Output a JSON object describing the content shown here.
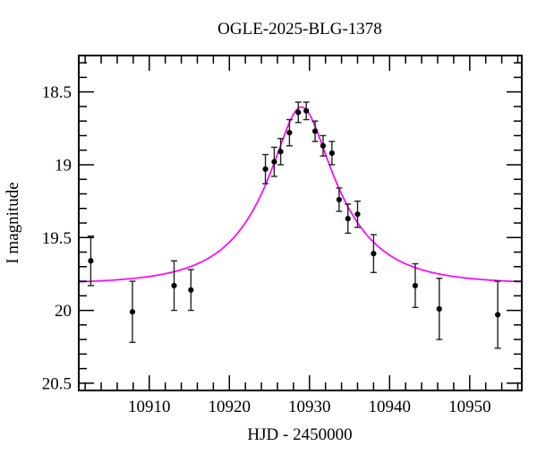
{
  "chart_data": {
    "type": "scatter",
    "title": "OGLE-2025-BLG-1378",
    "xlabel": "HJD - 2450000",
    "ylabel": "I magnitude",
    "xlim": [
      10901.2,
      10956.5
    ],
    "ylim": [
      18.25,
      20.55
    ],
    "y_axis_inverted": true,
    "grid": false,
    "legend": null,
    "x_major_ticks": [
      10910,
      10920,
      10930,
      10940,
      10950
    ],
    "x_major_tick_labels": [
      "10910",
      "10920",
      "10930",
      "10940",
      "10950"
    ],
    "x_minor_step": 2,
    "y_major_ticks": [
      18.5,
      19.0,
      19.5,
      20.0,
      20.5
    ],
    "y_major_tick_labels": [
      "18.5",
      "19",
      "19.5",
      "20",
      "20.5"
    ],
    "y_minor_step": 0.1,
    "colors": {
      "background": "#ffffff",
      "axes": "#000000",
      "points": "#000000",
      "error_bars": "#222222",
      "model_curve": "#ff00ff"
    },
    "points": [
      {
        "hjd": 10902.7,
        "mag": 19.66,
        "err": 0.17
      },
      {
        "hjd": 10907.9,
        "mag": 20.01,
        "err": 0.21
      },
      {
        "hjd": 10913.1,
        "mag": 19.83,
        "err": 0.17
      },
      {
        "hjd": 10915.2,
        "mag": 19.86,
        "err": 0.14
      },
      {
        "hjd": 10924.5,
        "mag": 19.03,
        "err": 0.1
      },
      {
        "hjd": 10925.6,
        "mag": 18.98,
        "err": 0.1
      },
      {
        "hjd": 10926.4,
        "mag": 18.91,
        "err": 0.09
      },
      {
        "hjd": 10927.5,
        "mag": 18.78,
        "err": 0.09
      },
      {
        "hjd": 10928.6,
        "mag": 18.64,
        "err": 0.07
      },
      {
        "hjd": 10929.6,
        "mag": 18.63,
        "err": 0.06
      },
      {
        "hjd": 10930.7,
        "mag": 18.77,
        "err": 0.07
      },
      {
        "hjd": 10931.7,
        "mag": 18.87,
        "err": 0.07
      },
      {
        "hjd": 10932.8,
        "mag": 18.92,
        "err": 0.08
      },
      {
        "hjd": 10933.7,
        "mag": 19.24,
        "err": 0.08
      },
      {
        "hjd": 10934.8,
        "mag": 19.37,
        "err": 0.1
      },
      {
        "hjd": 10936.0,
        "mag": 19.34,
        "err": 0.09
      },
      {
        "hjd": 10938.0,
        "mag": 19.61,
        "err": 0.13
      },
      {
        "hjd": 10943.2,
        "mag": 19.83,
        "err": 0.15
      },
      {
        "hjd": 10946.2,
        "mag": 19.99,
        "err": 0.21
      },
      {
        "hjd": 10953.5,
        "mag": 20.03,
        "err": 0.23
      }
    ],
    "model_curve": {
      "form": "paczynski_microlensing",
      "t0": 10929.0,
      "tE_days": 9.0,
      "u0": 0.34,
      "baseline_mag": 19.82
    }
  }
}
